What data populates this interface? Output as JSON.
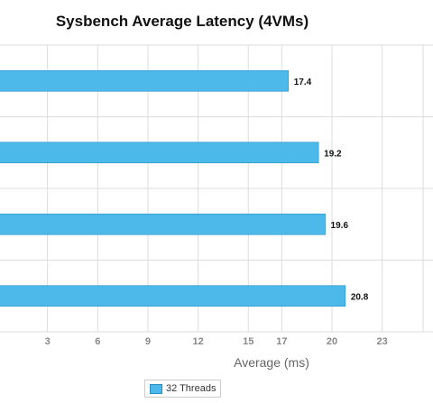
{
  "chart_data": {
    "type": "bar",
    "orientation": "horizontal",
    "title": "Sysbench Average Latency (4VMs)",
    "xlabel": "Average (ms)",
    "ylabel": "",
    "categories": [
      "",
      "",
      "",
      ""
    ],
    "series": [
      {
        "name": "32 Threads",
        "values": [
          17.4,
          19.2,
          19.6,
          20.8
        ],
        "labels": [
          "17.4",
          "19.2",
          "19.6",
          "20.8"
        ]
      }
    ],
    "xlim": [
      0,
      25.5
    ],
    "xticks": [
      "3",
      "6",
      "9",
      "12",
      "15",
      "17",
      "20",
      "23"
    ],
    "grid": true,
    "legend_position": "bottom",
    "colors": {
      "bar": "#4db8ea",
      "bar_border": "#2a8fc2",
      "grid": "#dddddd"
    }
  }
}
